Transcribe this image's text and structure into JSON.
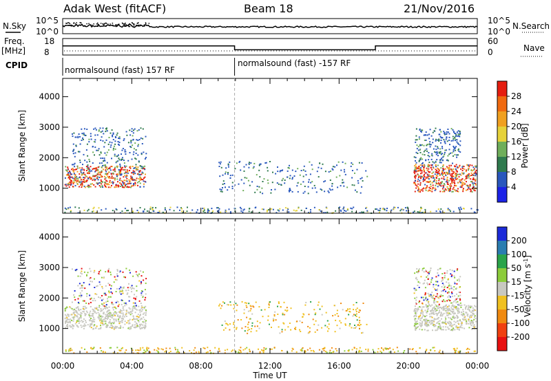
{
  "header": {
    "station": "Adak West (fitACF)",
    "beam": "Beam 18",
    "date": "21/Nov/2016"
  },
  "top_panels": {
    "nsky_label": "N.Sky",
    "nsky_ticks": [
      "10^5",
      "10^0"
    ],
    "nsearch_label": "N.Search",
    "nsearch_ticks": [
      "10^5",
      "10^0"
    ],
    "freq_label_1": "Freq.",
    "freq_label_2": "[MHz]",
    "freq_ticks": [
      "18",
      "8"
    ],
    "nave_label": "Nave",
    "nave_ticks": [
      "60",
      "0"
    ],
    "cpid_label": "CPID",
    "cpid_1": "normalsound (fast) 157 RF",
    "cpid_2": "normalsound (fast) -157 RF",
    "cpid_change_hour": 9.95,
    "freq_series": {
      "hours": [
        0,
        9.95,
        9.95,
        18.1,
        18.1,
        24
      ],
      "values": [
        13.5,
        13.5,
        11.2,
        11.2,
        13.5,
        13.5
      ]
    }
  },
  "chart_data": [
    {
      "type": "heatmap",
      "name": "power",
      "ylabel": "Slant Range [km]",
      "yticks": [
        "1000",
        "2000",
        "3000",
        "4000"
      ],
      "ylim": [
        180,
        4600
      ],
      "xlim": [
        0,
        24
      ],
      "colorbar_label": "Power [dB]",
      "colorbar_ticks": [
        "4",
        "8",
        "12",
        "16",
        "20",
        "24",
        "28"
      ],
      "colorbar_colors": [
        "#1b22e6",
        "#2957bd",
        "#2f7a4e",
        "#6fae5a",
        "#e6d23a",
        "#f0a020",
        "#f06a10",
        "#e51e10"
      ],
      "echo_regions": [
        {
          "h0": 0.1,
          "h1": 4.8,
          "r0": 1050,
          "r1": 1750,
          "level": "strong"
        },
        {
          "h0": 0.5,
          "h1": 4.8,
          "r0": 1750,
          "r1": 3000,
          "level": "weak"
        },
        {
          "h0": 9.0,
          "h1": 17.6,
          "r0": 850,
          "r1": 1900,
          "level": "weak"
        },
        {
          "h0": 20.3,
          "h1": 23.9,
          "r0": 900,
          "r1": 1800,
          "level": "strong"
        },
        {
          "h0": 20.3,
          "h1": 23.0,
          "r0": 1800,
          "r1": 3000,
          "level": "weak"
        }
      ]
    },
    {
      "type": "heatmap",
      "name": "velocity",
      "ylabel": "Slant Range [km]",
      "yticks": [
        "1000",
        "2000",
        "3000",
        "4000"
      ],
      "ylim": [
        180,
        4600
      ],
      "xlim": [
        0,
        24
      ],
      "xticks": [
        "00:00",
        "04:00",
        "08:00",
        "12:00",
        "16:00",
        "20:00",
        "00:00"
      ],
      "xlabel": "Time UT",
      "colorbar_label": "Velocity [m s",
      "colorbar_label_sup": "-1",
      "colorbar_label_end": "]",
      "colorbar_ticks": [
        "200",
        "100",
        "50",
        "15",
        "-15",
        "-50",
        "-100",
        "-200"
      ],
      "colorbar_colors": [
        "#1b2ad8",
        "#2a7db0",
        "#2aa44a",
        "#8ccc3a",
        "#c8c8c0",
        "#f0c020",
        "#f08a10",
        "#f04010",
        "#e81010"
      ],
      "echo_regions": [
        {
          "h0": 0.1,
          "h1": 4.8,
          "r0": 1000,
          "r1": 1750,
          "level": "ground"
        },
        {
          "h0": 0.5,
          "h1": 4.8,
          "r0": 1750,
          "r1": 3000,
          "level": "mixed"
        },
        {
          "h0": 9.0,
          "h1": 17.6,
          "r0": 850,
          "r1": 1900,
          "level": "negative"
        },
        {
          "h0": 20.3,
          "h1": 23.9,
          "r0": 950,
          "r1": 1800,
          "level": "ground"
        },
        {
          "h0": 20.3,
          "h1": 23.0,
          "r0": 1800,
          "r1": 3000,
          "level": "mixed"
        }
      ]
    }
  ]
}
